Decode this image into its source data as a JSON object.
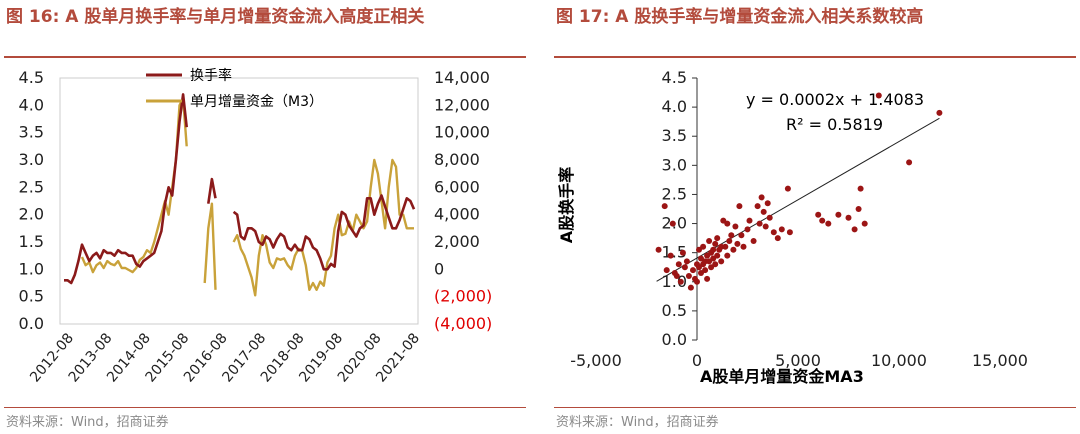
{
  "left": {
    "title": "图 16: A 股单月换手率与单月增量资金流入高度正相关",
    "source": "资料来源：Wind，招商证券",
    "chart_data": {
      "type": "line",
      "legend": [
        "换手率",
        "单月增量资金（M3）"
      ],
      "legend_position": "top-left",
      "y_left_ticks": [
        "4.5",
        "4.0",
        "3.5",
        "3.0",
        "2.5",
        "2.0",
        "1.5",
        "1.0",
        "0.5",
        "0.0"
      ],
      "y_right_ticks": [
        "14,000",
        "12,000",
        "10,000",
        "8,000",
        "6,000",
        "4,000",
        "2,000",
        "0",
        "(2,000)",
        "(4,000)"
      ],
      "y_left_range": [
        0,
        4.5
      ],
      "y_right_range": [
        -4000,
        14000
      ],
      "x_ticks": [
        "2012-08",
        "2013-08",
        "2014-08",
        "2015-08",
        "2016-08",
        "2017-08",
        "2018-08",
        "2019-08",
        "2020-08",
        "2021-08"
      ],
      "series": [
        {
          "name": "换手率",
          "color": "#8b1a1a",
          "axis": "left",
          "values": [
            0.8,
            0.8,
            0.75,
            0.9,
            1.15,
            1.45,
            1.3,
            1.15,
            1.25,
            1.3,
            1.2,
            1.35,
            1.3,
            1.3,
            1.25,
            1.35,
            1.3,
            1.3,
            1.25,
            1.25,
            1.1,
            1.05,
            1.15,
            1.2,
            1.25,
            1.3,
            1.5,
            1.7,
            2.2,
            2.5,
            2.35,
            3.0,
            3.7,
            4.2,
            3.6,
            null,
            null,
            null,
            null,
            null,
            2.2,
            2.65,
            2.3,
            null,
            null,
            null,
            null,
            2.05,
            2.0,
            1.6,
            1.55,
            1.75,
            1.75,
            1.7,
            1.5,
            1.45,
            1.6,
            1.55,
            1.4,
            1.55,
            1.65,
            1.6,
            1.4,
            1.35,
            1.45,
            1.35,
            1.35,
            1.6,
            1.55,
            1.4,
            1.35,
            1.2,
            1.0,
            1.0,
            1.1,
            1.05,
            1.7,
            2.05,
            2.0,
            1.8,
            1.7,
            1.6,
            1.75,
            1.8,
            2.3,
            2.3,
            2.0,
            2.2,
            2.35,
            2.15,
            1.95,
            1.75,
            1.75,
            1.9,
            2.1,
            2.3,
            2.25,
            2.1
          ]
        },
        {
          "name": "单月增量资金（M3）",
          "color": "#c9a23a",
          "axis": "right",
          "values": [
            null,
            null,
            null,
            null,
            null,
            900,
            300,
            500,
            -200,
            300,
            500,
            100,
            600,
            400,
            300,
            600,
            100,
            100,
            -50,
            -200,
            100,
            700,
            900,
            1400,
            1200,
            2000,
            3000,
            4000,
            5000,
            4000,
            6000,
            8000,
            12000,
            12500,
            9000,
            null,
            null,
            null,
            null,
            -1000,
            3000,
            4800,
            -1500,
            null,
            null,
            null,
            null,
            2000,
            2500,
            1500,
            1000,
            200,
            -600,
            -1900,
            1000,
            2500,
            1800,
            500,
            100,
            800,
            700,
            800,
            300,
            0,
            1000,
            1500,
            1400,
            300,
            -1500,
            -1000,
            -1500,
            -900,
            -1200,
            500,
            1000,
            3000,
            4000,
            2500,
            2600,
            3500,
            2800,
            4000,
            3500,
            3000,
            3500,
            6000,
            8000,
            7000,
            5000,
            3000,
            6000,
            8000,
            7500,
            4000,
            4000,
            3000,
            3000,
            3000
          ]
        }
      ]
    }
  },
  "right": {
    "title": "图 17: A 股换手率与增量资金流入相关系数较高",
    "source": "资料来源：Wind，招商证券",
    "chart_data": {
      "type": "scatter",
      "xlabel": "A股单月增量资金MA3",
      "ylabel": "A股换手率",
      "xlim": [
        -5000,
        15000
      ],
      "ylim": [
        0,
        4.5
      ],
      "x_ticks": [
        "-5,000",
        "0",
        "5,000",
        "10,000",
        "15,000"
      ],
      "y_ticks": [
        "4.5",
        "4.0",
        "3.5",
        "3.0",
        "2.5",
        "2.0",
        "1.5",
        "1.0",
        "0.5",
        "0.0"
      ],
      "marker_color": "#9c1515",
      "trendline_equation": "y = 0.0002x + 1.4083",
      "r_squared": "R² = 0.5819",
      "trendline": {
        "slope": 0.0002,
        "intercept": 1.4083,
        "x_range": [
          -2000,
          12000
        ]
      },
      "points": [
        [
          -1900,
          1.55
        ],
        [
          -1500,
          1.2
        ],
        [
          -1300,
          1.45
        ],
        [
          -1100,
          1.15
        ],
        [
          -1000,
          1.1
        ],
        [
          -900,
          1.3
        ],
        [
          -800,
          1.0
        ],
        [
          -700,
          1.5
        ],
        [
          -600,
          1.25
        ],
        [
          -500,
          1.35
        ],
        [
          -400,
          1.1
        ],
        [
          -300,
          0.9
        ],
        [
          -200,
          1.2
        ],
        [
          -100,
          1.05
        ],
        [
          0,
          1.3
        ],
        [
          0,
          1.0
        ],
        [
          100,
          1.25
        ],
        [
          100,
          1.55
        ],
        [
          200,
          1.4
        ],
        [
          200,
          1.15
        ],
        [
          300,
          1.3
        ],
        [
          300,
          1.6
        ],
        [
          400,
          1.35
        ],
        [
          400,
          1.2
        ],
        [
          500,
          1.45
        ],
        [
          500,
          1.05
        ],
        [
          600,
          1.35
        ],
        [
          600,
          1.7
        ],
        [
          700,
          1.5
        ],
        [
          700,
          1.25
        ],
        [
          800,
          1.4
        ],
        [
          800,
          1.55
        ],
        [
          900,
          1.65
        ],
        [
          900,
          1.3
        ],
        [
          1000,
          1.45
        ],
        [
          1000,
          1.75
        ],
        [
          1100,
          1.55
        ],
        [
          1200,
          1.6
        ],
        [
          1200,
          1.35
        ],
        [
          1300,
          2.05
        ],
        [
          1400,
          1.6
        ],
        [
          1500,
          2.0
        ],
        [
          1500,
          1.45
        ],
        [
          1600,
          1.7
        ],
        [
          1700,
          1.8
        ],
        [
          1800,
          1.55
        ],
        [
          1900,
          1.95
        ],
        [
          2000,
          1.65
        ],
        [
          2100,
          2.3
        ],
        [
          2200,
          1.8
        ],
        [
          2300,
          1.6
        ],
        [
          2500,
          1.9
        ],
        [
          2600,
          2.05
        ],
        [
          2800,
          1.7
        ],
        [
          3000,
          2.3
        ],
        [
          3100,
          2.0
        ],
        [
          3200,
          2.45
        ],
        [
          3300,
          2.2
        ],
        [
          3400,
          1.95
        ],
        [
          3500,
          2.35
        ],
        [
          3600,
          2.1
        ],
        [
          3800,
          1.85
        ],
        [
          4000,
          1.75
        ],
        [
          4200,
          1.9
        ],
        [
          4500,
          2.6
        ],
        [
          4600,
          1.85
        ],
        [
          6000,
          2.15
        ],
        [
          6200,
          2.05
        ],
        [
          6500,
          2.0
        ],
        [
          7000,
          2.15
        ],
        [
          7500,
          2.1
        ],
        [
          7800,
          1.9
        ],
        [
          8000,
          2.25
        ],
        [
          8100,
          2.6
        ],
        [
          8300,
          2.0
        ],
        [
          9000,
          4.2
        ],
        [
          10500,
          3.05
        ],
        [
          12000,
          3.9
        ],
        [
          -1600,
          2.3
        ],
        [
          -1200,
          2.0
        ]
      ]
    }
  }
}
